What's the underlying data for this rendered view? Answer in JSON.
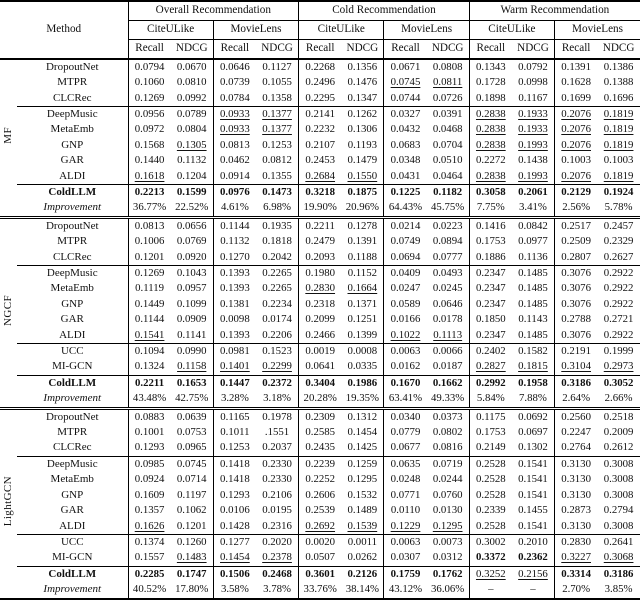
{
  "header": {
    "method": "Method",
    "groups": [
      "Overall Recommendation",
      "Cold Recommendation",
      "Warm Recommendation"
    ],
    "datasets": [
      "CiteULike",
      "MovieLens"
    ],
    "metrics": [
      "Recall",
      "NDCG"
    ]
  },
  "sections": [
    {
      "backbone": "MF",
      "blocks": [
        [
          {
            "method": "DropoutNet",
            "v": [
              "0.0794",
              "0.0670",
              "0.0646",
              "0.1127",
              "0.2268",
              "0.1356",
              "0.0671",
              "0.0808",
              "0.1343",
              "0.0792",
              "0.1391",
              "0.1386"
            ],
            "m": "............"
          },
          {
            "method": "MTPR",
            "v": [
              "0.1060",
              "0.0810",
              "0.0739",
              "0.1055",
              "0.2496",
              "0.1476",
              "0.0745",
              "0.0811",
              "0.1728",
              "0.0998",
              "0.1628",
              "0.1388"
            ],
            "m": "......uu...."
          },
          {
            "method": "CLCRec",
            "v": [
              "0.1269",
              "0.0992",
              "0.0784",
              "0.1358",
              "0.2295",
              "0.1347",
              "0.0744",
              "0.0726",
              "0.1898",
              "0.1167",
              "0.1699",
              "0.1696"
            ],
            "m": "............"
          }
        ],
        [
          {
            "method": "DeepMusic",
            "v": [
              "0.0956",
              "0.0789",
              "0.0933",
              "0.1377",
              "0.2141",
              "0.1262",
              "0.0327",
              "0.0391",
              "0.2838",
              "0.1933",
              "0.2076",
              "0.1819"
            ],
            "m": "..uu....uuuu"
          },
          {
            "method": "MetaEmb",
            "v": [
              "0.0972",
              "0.0804",
              "0.0933",
              "0.1377",
              "0.2232",
              "0.1306",
              "0.0432",
              "0.0468",
              "0.2838",
              "0.1933",
              "0.2076",
              "0.1819"
            ],
            "m": "..uu....uuuu"
          },
          {
            "method": "GNP",
            "v": [
              "0.1568",
              "0.1305",
              "0.0813",
              "0.1253",
              "0.2107",
              "0.1193",
              "0.0683",
              "0.0704",
              "0.2838",
              "0.1993",
              "0.2076",
              "0.1819"
            ],
            "m": ".u......uuuu"
          },
          {
            "method": "GAR",
            "v": [
              "0.1440",
              "0.1132",
              "0.0462",
              "0.0812",
              "0.2453",
              "0.1479",
              "0.0348",
              "0.0510",
              "0.2272",
              "0.1438",
              "0.1003",
              "0.1003"
            ],
            "m": "............"
          },
          {
            "method": "ALDI",
            "v": [
              "0.1618",
              "0.1204",
              "0.0914",
              "0.1355",
              "0.2684",
              "0.1550",
              "0.0431",
              "0.0464",
              "0.2838",
              "0.1993",
              "0.2076",
              "0.1819"
            ],
            "m": "u...uu..uuuu"
          }
        ]
      ],
      "coldllm": {
        "method": "ColdLLM",
        "ls": "b",
        "v": [
          "0.2213",
          "0.1599",
          "0.0976",
          "0.1473",
          "0.3218",
          "0.1875",
          "0.1225",
          "0.1182",
          "0.3058",
          "0.2061",
          "0.2129",
          "0.1924"
        ],
        "m": "bbbbbbbbbbbb"
      },
      "improvement": {
        "method": "Improvement",
        "ls": "i",
        "v": [
          "36.77%",
          "22.52%",
          "4.61%",
          "6.98%",
          "19.90%",
          "20.96%",
          "64.43%",
          "45.75%",
          "7.75%",
          "3.41%",
          "2.56%",
          "5.78%"
        ],
        "m": "............"
      }
    },
    {
      "backbone": "NGCF",
      "blocks": [
        [
          {
            "method": "DropoutNet",
            "v": [
              "0.0813",
              "0.0656",
              "0.1144",
              "0.1935",
              "0.2211",
              "0.1278",
              "0.0214",
              "0.0223",
              "0.1416",
              "0.0842",
              "0.2517",
              "0.2457"
            ],
            "m": "............"
          },
          {
            "method": "MTPR",
            "v": [
              "0.1006",
              "0.0769",
              "0.1132",
              "0.1818",
              "0.2479",
              "0.1391",
              "0.0749",
              "0.0894",
              "0.1753",
              "0.0977",
              "0.2509",
              "0.2329"
            ],
            "m": "............"
          },
          {
            "method": "CLCRec",
            "v": [
              "0.1201",
              "0.0920",
              "0.1270",
              "0.2042",
              "0.2093",
              "0.1188",
              "0.0694",
              "0.0777",
              "0.1886",
              "0.1136",
              "0.2807",
              "0.2627"
            ],
            "m": "............"
          }
        ],
        [
          {
            "method": "DeepMusic",
            "v": [
              "0.1269",
              "0.1043",
              "0.1393",
              "0.2265",
              "0.1980",
              "0.1152",
              "0.0409",
              "0.0493",
              "0.2347",
              "0.1485",
              "0.3076",
              "0.2922"
            ],
            "m": "............"
          },
          {
            "method": "MetaEmb",
            "v": [
              "0.1119",
              "0.0957",
              "0.1393",
              "0.2265",
              "0.2830",
              "0.1664",
              "0.0247",
              "0.0245",
              "0.2347",
              "0.1485",
              "0.3076",
              "0.2922"
            ],
            "m": "....uu......"
          },
          {
            "method": "GNP",
            "v": [
              "0.1449",
              "0.1099",
              "0.1381",
              "0.2234",
              "0.2318",
              "0.1371",
              "0.0589",
              "0.0646",
              "0.2347",
              "0.1485",
              "0.3076",
              "0.2922"
            ],
            "m": "............"
          },
          {
            "method": "GAR",
            "v": [
              "0.1144",
              "0.0909",
              "0.0098",
              "0.0174",
              "0.2099",
              "0.1251",
              "0.0166",
              "0.0178",
              "0.1850",
              "0.1143",
              "0.2788",
              "0.2721"
            ],
            "m": "............"
          },
          {
            "method": "ALDI",
            "v": [
              "0.1541",
              "0.1141",
              "0.1393",
              "0.2206",
              "0.2466",
              "0.1399",
              "0.1022",
              "0.1113",
              "0.2347",
              "0.1485",
              "0.3076",
              "0.2922"
            ],
            "m": "u.....uu...."
          }
        ],
        [
          {
            "method": "UCC",
            "v": [
              "0.1094",
              "0.0990",
              "0.0981",
              "0.1523",
              "0.0019",
              "0.0008",
              "0.0063",
              "0.0066",
              "0.2402",
              "0.1582",
              "0.2191",
              "0.1999"
            ],
            "m": "............"
          },
          {
            "method": "MI-GCN",
            "v": [
              "0.1324",
              "0.1158",
              "0.1401",
              "0.2299",
              "0.0641",
              "0.0335",
              "0.0162",
              "0.0187",
              "0.2827",
              "0.1815",
              "0.3104",
              "0.2973"
            ],
            "m": ".uuu....uuuu"
          }
        ]
      ],
      "coldllm": {
        "method": "ColdLLM",
        "ls": "b",
        "v": [
          "0.2211",
          "0.1653",
          "0.1447",
          "0.2372",
          "0.3404",
          "0.1986",
          "0.1670",
          "0.1662",
          "0.2992",
          "0.1958",
          "0.3186",
          "0.3052"
        ],
        "m": "bbbbbbbbbbbb"
      },
      "improvement": {
        "method": "Improvement",
        "ls": "i",
        "v": [
          "43.48%",
          "42.75%",
          "3.28%",
          "3.18%",
          "20.28%",
          "19.35%",
          "63.41%",
          "49.33%",
          "5.84%",
          "7.88%",
          "2.64%",
          "2.66%"
        ],
        "m": "............"
      }
    },
    {
      "backbone": "LightGCN",
      "blocks": [
        [
          {
            "method": "DropoutNet",
            "v": [
              "0.0883",
              "0.0639",
              "0.1165",
              "0.1978",
              "0.2309",
              "0.1312",
              "0.0340",
              "0.0373",
              "0.1175",
              "0.0692",
              "0.2560",
              "0.2518"
            ],
            "m": "............"
          },
          {
            "method": "MTPR",
            "v": [
              "0.1001",
              "0.0753",
              "0.1011",
              ".1551",
              "0.2585",
              "0.1454",
              "0.0779",
              "0.0802",
              "0.1753",
              "0.0697",
              "0.2247",
              "0.2009"
            ],
            "m": "............"
          },
          {
            "method": "CLCRec",
            "v": [
              "0.1293",
              "0.0965",
              "0.1253",
              "0.2037",
              "0.2435",
              "0.1425",
              "0.0677",
              "0.0816",
              "0.2149",
              "0.1302",
              "0.2764",
              "0.2612"
            ],
            "m": "............"
          }
        ],
        [
          {
            "method": "DeepMusic",
            "v": [
              "0.0985",
              "0.0745",
              "0.1418",
              "0.2330",
              "0.2239",
              "0.1259",
              "0.0635",
              "0.0719",
              "0.2528",
              "0.1541",
              "0.3130",
              "0.3008"
            ],
            "m": "............"
          },
          {
            "method": "MetaEmb",
            "v": [
              "0.0924",
              "0.0714",
              "0.1418",
              "0.2330",
              "0.2252",
              "0.1295",
              "0.0248",
              "0.0244",
              "0.2528",
              "0.1541",
              "0.3130",
              "0.3008"
            ],
            "m": "............"
          },
          {
            "method": "GNP",
            "v": [
              "0.1609",
              "0.1197",
              "0.1293",
              "0.2106",
              "0.2606",
              "0.1532",
              "0.0771",
              "0.0760",
              "0.2528",
              "0.1541",
              "0.3130",
              "0.3008"
            ],
            "m": "............"
          },
          {
            "method": "GAR",
            "v": [
              "0.1357",
              "0.1062",
              "0.0106",
              "0.0195",
              "0.2539",
              "0.1489",
              "0.0110",
              "0.0130",
              "0.2339",
              "0.1455",
              "0.2873",
              "0.2794"
            ],
            "m": "............"
          },
          {
            "method": "ALDI",
            "v": [
              "0.1626",
              "0.1201",
              "0.1428",
              "0.2316",
              "0.2692",
              "0.1539",
              "0.1229",
              "0.1295",
              "0.2528",
              "0.1541",
              "0.3130",
              "0.3008"
            ],
            "m": "u...uuuu...."
          }
        ],
        [
          {
            "method": "UCC",
            "v": [
              "0.1374",
              "0.1260",
              "0.1277",
              "0.2020",
              "0.0020",
              "0.0011",
              "0.0063",
              "0.0073",
              "0.3002",
              "0.2010",
              "0.2830",
              "0.2641"
            ],
            "m": "............"
          },
          {
            "method": "MI-GCN",
            "v": [
              "0.1557",
              "0.1483",
              "0.1454",
              "0.2378",
              "0.0507",
              "0.0262",
              "0.0307",
              "0.0312",
              "0.3372",
              "0.2362",
              "0.3227",
              "0.3068"
            ],
            "m": ".uuu....bbuu"
          }
        ]
      ],
      "coldllm": {
        "method": "ColdLLM",
        "ls": "b",
        "v": [
          "0.2285",
          "0.1747",
          "0.1506",
          "0.2468",
          "0.3601",
          "0.2126",
          "0.1759",
          "0.1762",
          "0.3252",
          "0.2156",
          "0.3314",
          "0.3186"
        ],
        "m": "bbbbbbbbuubb"
      },
      "improvement": {
        "method": "Improvement",
        "ls": "i",
        "v": [
          "40.52%",
          "17.80%",
          "3.58%",
          "3.78%",
          "33.76%",
          "38.14%",
          "43.12%",
          "36.06%",
          "–",
          "–",
          "2.70%",
          "3.85%"
        ],
        "m": "............"
      }
    }
  ]
}
